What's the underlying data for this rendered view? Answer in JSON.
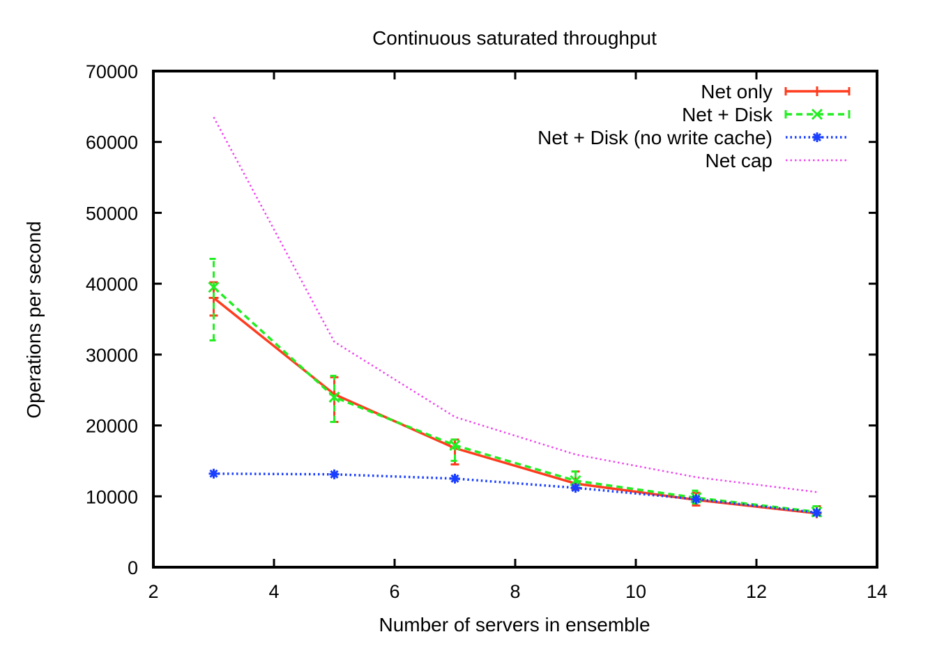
{
  "chart_data": {
    "type": "line",
    "title": "Continuous saturated throughput",
    "xlabel": "Number of servers in ensemble",
    "ylabel": "Operations per second",
    "xlim": [
      2,
      14
    ],
    "ylim": [
      0,
      70000
    ],
    "xticks": [
      "2",
      "4",
      "6",
      "8",
      "10",
      "12",
      "14"
    ],
    "yticks": [
      "0",
      "10000",
      "20000",
      "30000",
      "40000",
      "50000",
      "60000",
      "70000"
    ],
    "grid": false,
    "legend_position": "top-right",
    "series": [
      {
        "name": "Net only",
        "color": "#ff3b1f",
        "dash": "solid",
        "marker": "plus",
        "x": [
          3,
          5,
          7,
          9,
          11,
          13
        ],
        "y": [
          38000,
          24400,
          16800,
          11800,
          9500,
          7600
        ],
        "err_low": [
          35500,
          20500,
          14500,
          11000,
          8700,
          7300
        ],
        "err_high": [
          40200,
          26800,
          18000,
          13500,
          10500,
          8600
        ]
      },
      {
        "name": "Net + Disk",
        "color": "#22ee22",
        "dash": "dashed",
        "marker": "x",
        "x": [
          3,
          5,
          7,
          9,
          11,
          13
        ],
        "y": [
          39500,
          24000,
          17200,
          12200,
          9800,
          7800
        ],
        "err_low": [
          32000,
          20500,
          15000,
          11200,
          9000,
          7300
        ],
        "err_high": [
          43500,
          27000,
          18000,
          13500,
          10800,
          8600
        ]
      },
      {
        "name": "Net + Disk (no write cache)",
        "color": "#1a3fff",
        "dash": "dotted",
        "marker": "star",
        "x": [
          3,
          5,
          7,
          9,
          11,
          13
        ],
        "y": [
          13200,
          13100,
          12500,
          11200,
          9600,
          7700
        ]
      },
      {
        "name": "Net cap",
        "color": "#ee44ee",
        "dash": "dotted",
        "marker": "none",
        "x": [
          3,
          5,
          7,
          9,
          11,
          13
        ],
        "y": [
          63500,
          31800,
          21200,
          15900,
          12700,
          10600
        ]
      }
    ]
  }
}
